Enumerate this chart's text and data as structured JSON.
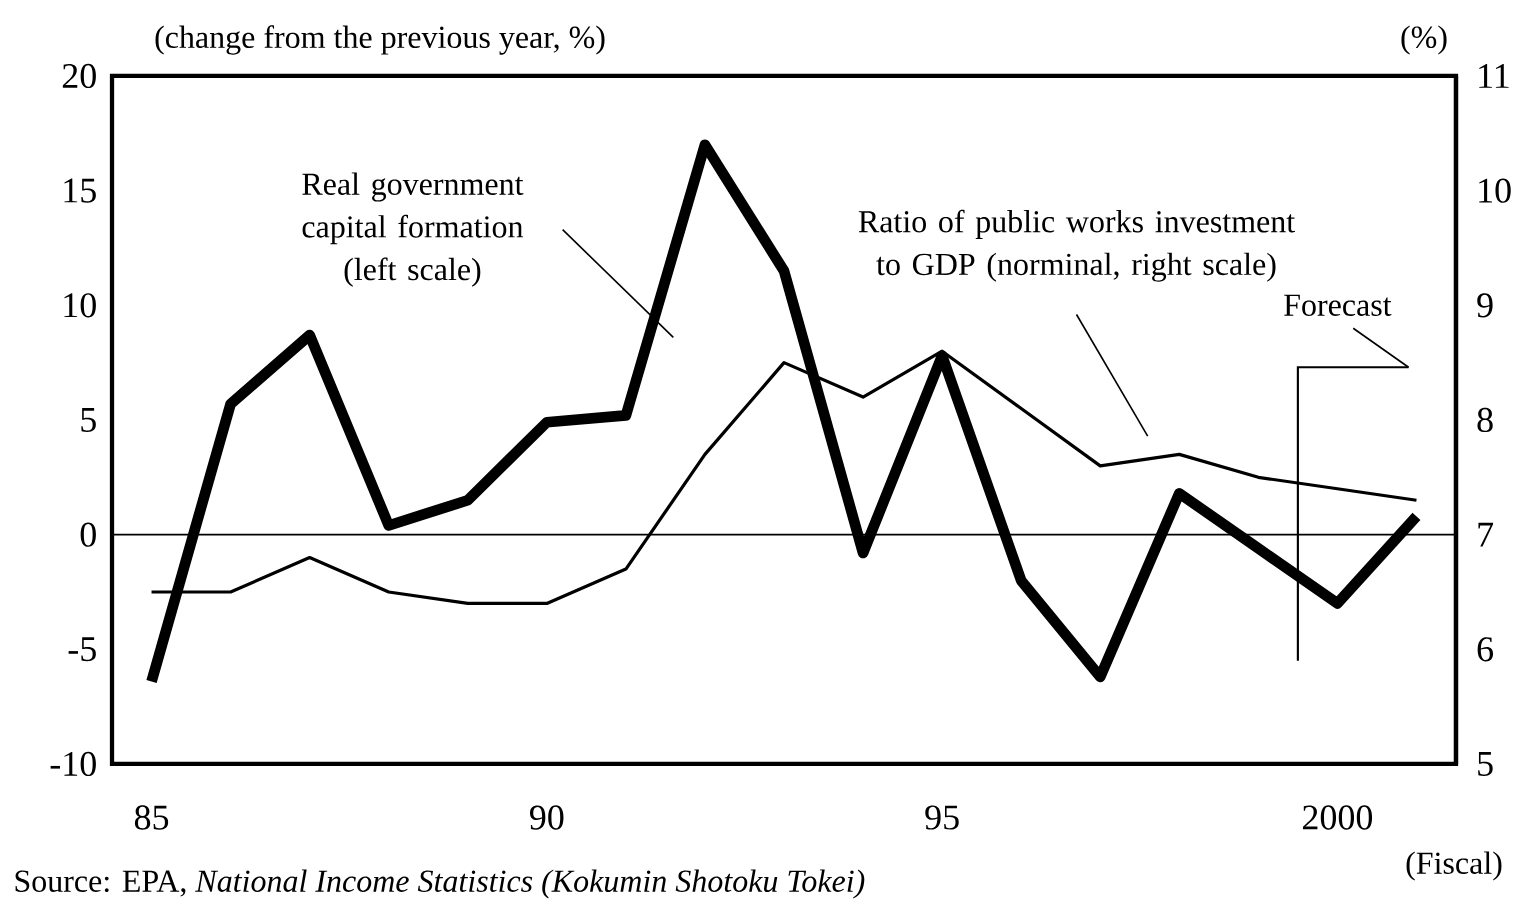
{
  "chart_data": {
    "type": "line",
    "ylabel": "(change from the previous year, %)",
    "y2label": "(%)",
    "xlabel": "(Fiscal)",
    "x": [
      1985,
      1986,
      1987,
      1988,
      1989,
      1990,
      1991,
      1992,
      1993,
      1994,
      1995,
      1996,
      1997,
      1998,
      1999,
      2000,
      2001
    ],
    "series": [
      {
        "name": "Real government capital formation (left scale)",
        "color": "#000000",
        "axis": "y",
        "values": [
          -6.4,
          5.7,
          8.7,
          0.4,
          1.5,
          4.9,
          5.2,
          17.0,
          11.5,
          -0.8,
          7.8,
          -2.0,
          -6.2,
          1.8,
          -0.6,
          -3.0,
          0.8
        ]
      },
      {
        "name": "Ratio of public works investment to GDP (norminal, right scale)",
        "color": "#000000",
        "axis": "y2",
        "values": [
          6.5,
          6.5,
          6.8,
          6.5,
          6.4,
          6.4,
          6.7,
          7.7,
          8.5,
          8.2,
          8.6,
          8.1,
          7.6,
          7.7,
          7.5,
          7.4,
          7.3
        ]
      }
    ],
    "xlim": [
      1984.5,
      2001.5
    ],
    "xticks": [
      {
        "value": 1985,
        "label": "85"
      },
      {
        "value": 1990,
        "label": "90"
      },
      {
        "value": 1995,
        "label": "95"
      },
      2000
    ],
    "ylim": [
      -10,
      20
    ],
    "yticks": [
      -10,
      -5,
      0,
      5,
      10,
      15,
      20
    ],
    "y2lim": [
      5,
      11
    ],
    "y2ticks": [
      5,
      6,
      7,
      8,
      9,
      10,
      11
    ],
    "ref_lines": [
      {
        "axis": "y",
        "value": 0
      },
      {
        "axis": "x",
        "value": 1999.5,
        "label": "Forecast"
      }
    ],
    "annotations": [
      "Source: EPA, *National Income Statistics (Kokumin Shotoku Tokei)*"
    ],
    "marker": "none",
    "line_style": "solid",
    "grid": false
  }
}
